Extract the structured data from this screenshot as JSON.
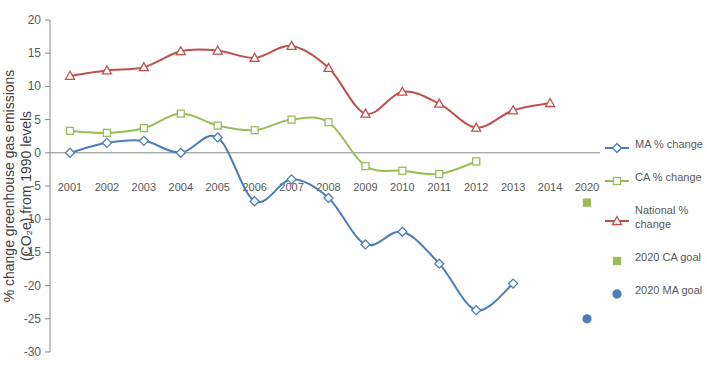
{
  "chart_data": {
    "type": "line",
    "y_label": "% change greenhouse gas emissions (CO₂e) from 1990 levels",
    "categories": [
      "2001",
      "2002",
      "2003",
      "2004",
      "2005",
      "2006",
      "2007",
      "2008",
      "2009",
      "2010",
      "2011",
      "2012",
      "2013",
      "2014",
      "2020"
    ],
    "series": [
      {
        "name": "MA % change",
        "color": "#4a7ebb",
        "type": "line",
        "marker": "diamond",
        "line_style": "smooth",
        "values": [
          0,
          1.5,
          1.8,
          0,
          2.3,
          -7.3,
          -4,
          -6.8,
          -13.8,
          -11.9,
          -16.7,
          -23.7,
          -19.7,
          null,
          null
        ]
      },
      {
        "name": "CA % change",
        "color": "#9bbb59",
        "type": "line",
        "marker": "square",
        "line_style": "smooth",
        "values": [
          3.3,
          3.0,
          3.7,
          5.9,
          4.1,
          3.4,
          5.0,
          4.6,
          -2.0,
          -2.7,
          -3.2,
          -1.3,
          null,
          null,
          null
        ]
      },
      {
        "name": "National % change",
        "color": "#c0504d",
        "type": "line",
        "marker": "triangle",
        "line_style": "smooth",
        "values": [
          11.6,
          12.4,
          12.9,
          15.3,
          15.4,
          14.3,
          16.1,
          12.8,
          5.9,
          9.2,
          7.4,
          3.8,
          6.4,
          7.5,
          null
        ]
      },
      {
        "name": "2020 CA goal",
        "color": "#9bbb59",
        "type": "scatter",
        "marker": "square",
        "values": [
          null,
          null,
          null,
          null,
          null,
          null,
          null,
          null,
          null,
          null,
          null,
          null,
          null,
          null,
          -7.5
        ]
      },
      {
        "name": "2020 MA goal",
        "color": "#4a7ebb",
        "type": "scatter",
        "marker": "circle",
        "values": [
          null,
          null,
          null,
          null,
          null,
          null,
          null,
          null,
          null,
          null,
          null,
          null,
          null,
          null,
          -25
        ]
      }
    ],
    "ylim": [
      -30,
      20
    ],
    "yticks": [
      -30,
      -25,
      -20,
      -15,
      -10,
      -5,
      0,
      5,
      10,
      15,
      20
    ],
    "grid": false,
    "legend": "right"
  }
}
